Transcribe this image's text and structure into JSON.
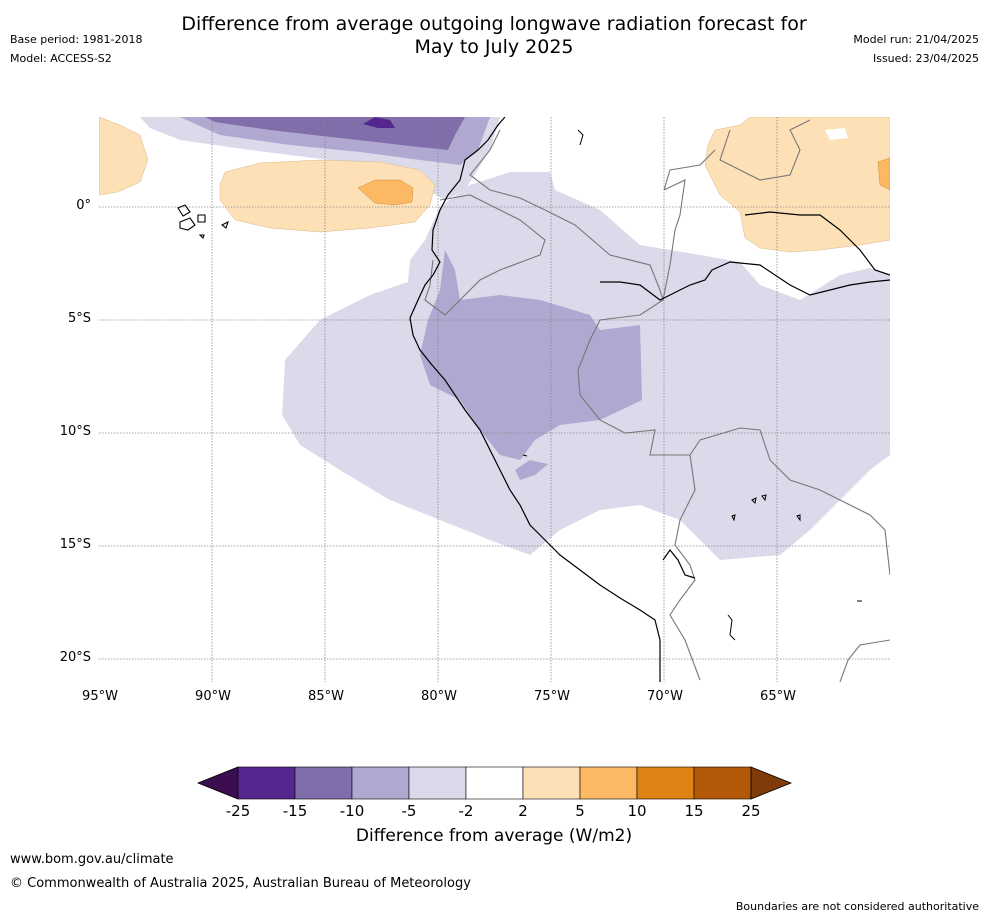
{
  "header": {
    "title_line1": "Difference from average outgoing longwave radiation forecast for",
    "title_line2": "May to July 2025",
    "base_period": "Base period: 1981-2018",
    "model": "Model: ACCESS-S2",
    "model_run": "Model run: 21/04/2025",
    "issued": "Issued: 23/04/2025"
  },
  "map": {
    "lat_labels": [
      "0°",
      "5°S",
      "10°S",
      "15°S",
      "20°S"
    ],
    "lon_labels": [
      "95°W",
      "90°W",
      "85°W",
      "80°W",
      "75°W",
      "70°W",
      "65°W"
    ],
    "extent": {
      "lon_min": -95,
      "lon_max": -60,
      "lat_max": 4,
      "lat_min": -21
    }
  },
  "colorbar": {
    "ticks": [
      "-25",
      "-15",
      "-10",
      "-5",
      "-2",
      "2",
      "5",
      "10",
      "15",
      "25"
    ],
    "colors": [
      "#3b0f4f",
      "#54278f",
      "#7f6ea9",
      "#b0a8d0",
      "#dadaeb",
      "#ffffff",
      "#fee0b6",
      "#fdb863",
      "#e08214",
      "#b35806",
      "#7f3b08"
    ],
    "label": "Difference from average (W/m2)"
  },
  "footer": {
    "url": "www.bom.gov.au/climate",
    "copyright": "© Commonwealth of Australia 2025, Australian Bureau of Meteorology",
    "disclaimer": "Boundaries are not considered authoritative"
  }
}
